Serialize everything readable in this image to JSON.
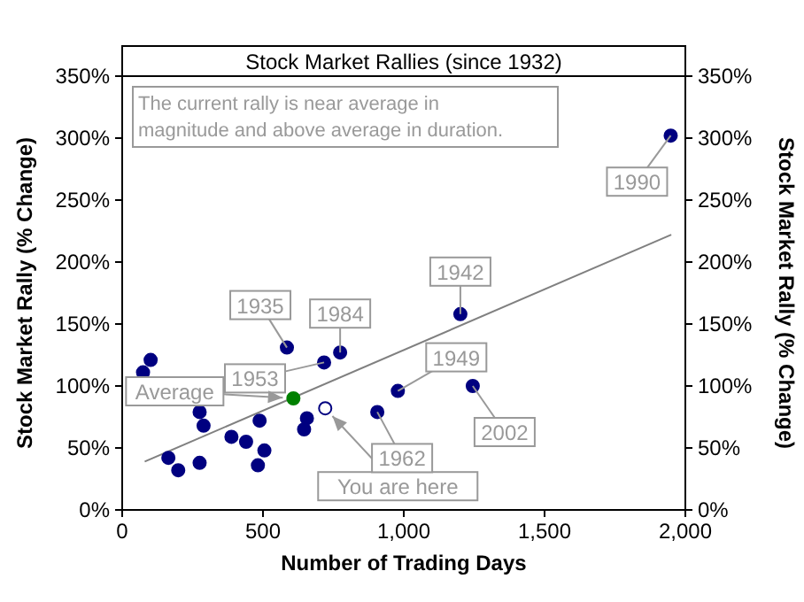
{
  "chart_data": {
    "type": "scatter",
    "title": "Stock Market Rallies (since 1932)",
    "xlabel": "Number of Trading Days",
    "ylabel": "Stock Market Rally (% Change)",
    "y2label": "Stock Market Rally (% Change)",
    "xlim": [
      0,
      2000
    ],
    "xticks": [
      0,
      {
        "value": 500,
        "label": "500"
      },
      {
        "value": 1000,
        "label": "1,000"
      },
      {
        "value": 1500,
        "label": "1,500"
      },
      {
        "value": 2000,
        "label": "2,000"
      }
    ],
    "ylim": [
      0,
      350
    ],
    "yticks": [
      {
        "value": 0,
        "label": "0%"
      },
      {
        "value": 50,
        "label": "50%"
      },
      {
        "value": 100,
        "label": "100%"
      },
      {
        "value": 150,
        "label": "150%"
      },
      {
        "value": 200,
        "label": "200%"
      },
      {
        "value": 250,
        "label": "250%"
      },
      {
        "value": 300,
        "label": "300%"
      },
      {
        "value": 350,
        "label": "350%"
      }
    ],
    "y2lim": [
      0,
      350
    ],
    "y2ticks": [
      {
        "value": 0,
        "label": "0%"
      },
      {
        "value": 50,
        "label": "50%"
      },
      {
        "value": 100,
        "label": "100%"
      },
      {
        "value": 150,
        "label": "150%"
      },
      {
        "value": 200,
        "label": "200%"
      },
      {
        "value": 250,
        "label": "250%"
      },
      {
        "value": 300,
        "label": "300%"
      },
      {
        "value": 350,
        "label": "350%"
      }
    ],
    "grid": false,
    "series": [
      {
        "type": "line",
        "color": "#808080",
        "x": [
          80,
          1950
        ],
        "values": [
          39,
          222
        ]
      },
      {
        "color": "#000080",
        "marker": "circle",
        "x": [
          74,
          101,
          164,
          199,
          275,
          289,
          275,
          388,
          440,
          488,
          505,
          482,
          585,
          656,
          646,
          717,
          774,
          906,
          979,
          1201,
          1245,
          1948
        ],
        "values": [
          111,
          121,
          42,
          32,
          79,
          68,
          38,
          59,
          55,
          72,
          48,
          36,
          131,
          74,
          65,
          119,
          127,
          79,
          96,
          158,
          100,
          302
        ]
      },
      {
        "color": "#008000",
        "marker": "circle",
        "x": [
          608
        ],
        "values": [
          90
        ]
      },
      {
        "color": "#ffffff",
        "marker": "circle",
        "x": [
          721
        ],
        "values": [
          82
        ]
      }
    ],
    "annotations": [
      "The current rally is near average in magnitude and above average in duration.",
      {
        "text": "1935",
        "x": 585,
        "y": 131
      },
      {
        "text": "1984",
        "x": 774,
        "y": 127
      },
      {
        "text": "1953",
        "x": 717,
        "y": 119
      },
      {
        "text": "Average",
        "x": 608,
        "y": 90
      },
      {
        "text": "You are here",
        "x": 721,
        "y": 82
      },
      {
        "text": "1962",
        "x": 906,
        "y": 79
      },
      {
        "text": "1949",
        "x": 979,
        "y": 96
      },
      {
        "text": "1942",
        "x": 1201,
        "y": 158
      },
      {
        "text": "2002",
        "x": 1245,
        "y": 100
      },
      {
        "text": "1990",
        "x": 1948,
        "y": 302
      }
    ]
  }
}
